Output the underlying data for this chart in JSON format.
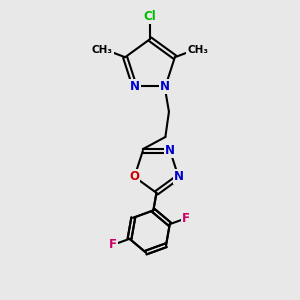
{
  "background_color": "#e8e8e8",
  "bond_color": "#000000",
  "nitrogen_color": "#0000cc",
  "oxygen_color": "#cc0000",
  "chlorine_color": "#00bb00",
  "fluorine_color": "#cc0066",
  "bond_width": 1.5,
  "font_size": 8.5,
  "fig_width": 3.0,
  "fig_height": 3.0,
  "dpi": 100,
  "xlim": [
    0,
    10
  ],
  "ylim": [
    0,
    10
  ]
}
